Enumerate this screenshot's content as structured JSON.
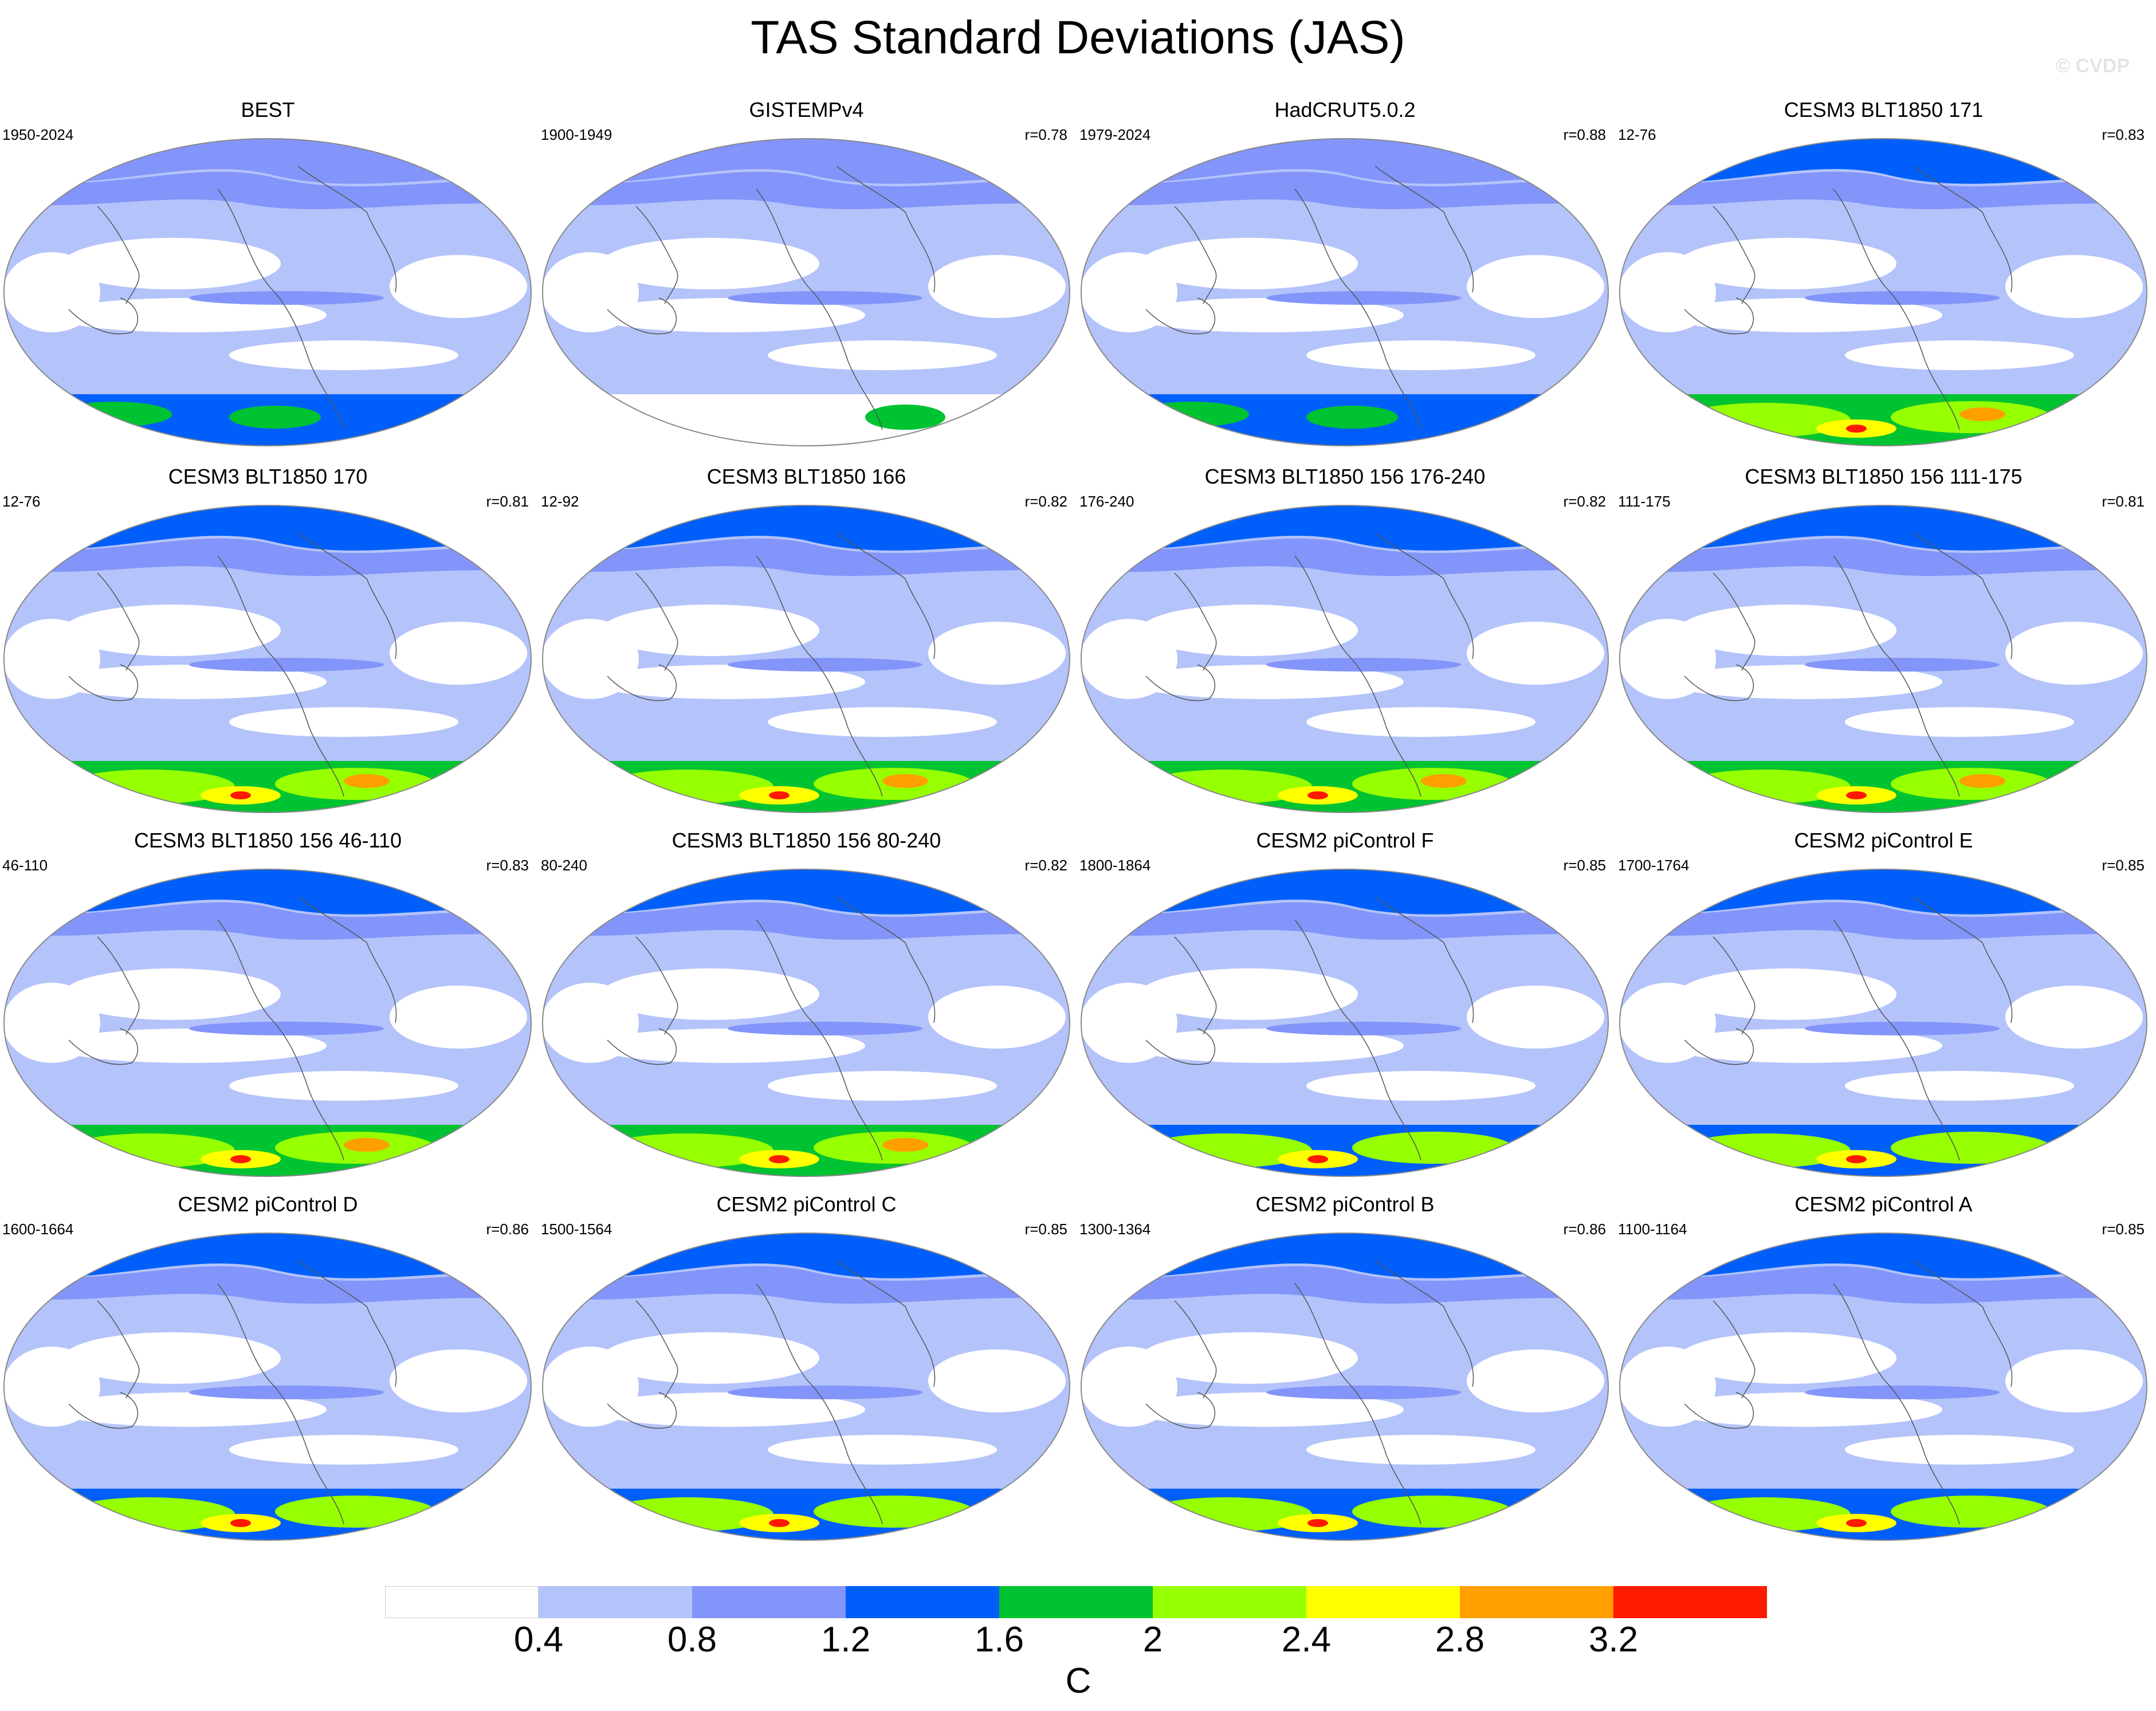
{
  "chart_data": {
    "type": "heatmap",
    "title": "TAS Standard Deviations (JAS)",
    "watermark": "© CVDP",
    "projection": "global map panels",
    "colorbar": {
      "levels": [
        "0.4",
        "0.8",
        "1.2",
        "1.6",
        "2",
        "2.4",
        "2.8",
        "3.2"
      ],
      "colors": [
        "#ffffff",
        "#b4c3fa",
        "#8395fa",
        "#005ffa",
        "#00c331",
        "#96ff00",
        "#ffff00",
        "#ff9f00",
        "#ff1900"
      ],
      "units": "C"
    },
    "panels": [
      {
        "title": "BEST",
        "period": "1950-2024",
        "r": "",
        "antarctic": "low"
      },
      {
        "title": "GISTEMPv4",
        "period": "1900-1949",
        "r": "r=0.78",
        "antarctic": "missing"
      },
      {
        "title": "HadCRUT5.0.2",
        "period": "1979-2024",
        "r": "r=0.88",
        "antarctic": "low"
      },
      {
        "title": "CESM3 BLT1850 171",
        "period": "12-76",
        "r": "r=0.83",
        "antarctic": "high"
      },
      {
        "title": "CESM3 BLT1850 170",
        "period": "12-76",
        "r": "r=0.81",
        "antarctic": "high"
      },
      {
        "title": "CESM3 BLT1850 166",
        "period": "12-92",
        "r": "r=0.82",
        "antarctic": "high"
      },
      {
        "title": "CESM3 BLT1850 156 176-240",
        "period": "176-240",
        "r": "r=0.82",
        "antarctic": "high"
      },
      {
        "title": "CESM3 BLT1850 156 111-175",
        "period": "111-175",
        "r": "r=0.81",
        "antarctic": "high"
      },
      {
        "title": "CESM3 BLT1850 156 46-110",
        "period": "46-110",
        "r": "r=0.83",
        "antarctic": "high"
      },
      {
        "title": "CESM3 BLT1850 156 80-240",
        "period": "80-240",
        "r": "r=0.82",
        "antarctic": "high"
      },
      {
        "title": "CESM2 piControl F",
        "period": "1800-1864",
        "r": "r=0.85",
        "antarctic": "medium"
      },
      {
        "title": "CESM2 piControl E",
        "period": "1700-1764",
        "r": "r=0.85",
        "antarctic": "medium"
      },
      {
        "title": "CESM2 piControl D",
        "period": "1600-1664",
        "r": "r=0.86",
        "antarctic": "medium"
      },
      {
        "title": "CESM2 piControl C",
        "period": "1500-1564",
        "r": "r=0.85",
        "antarctic": "medium"
      },
      {
        "title": "CESM2 piControl B",
        "period": "1300-1364",
        "r": "r=0.86",
        "antarctic": "medium"
      },
      {
        "title": "CESM2 piControl A",
        "period": "1100-1164",
        "r": "r=0.85",
        "antarctic": "medium"
      }
    ]
  }
}
